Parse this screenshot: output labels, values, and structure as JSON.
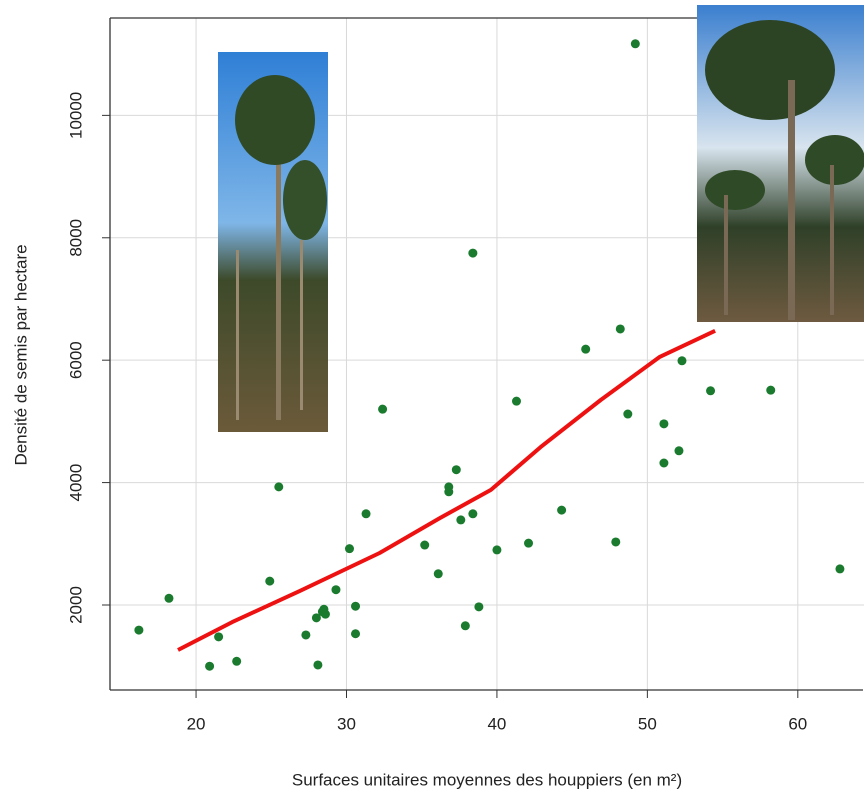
{
  "chart_data": {
    "type": "scatter",
    "xlabel": "Surfaces unitaires moyennes des houppiers (en m²)",
    "ylabel": "Densité de semis par hectare",
    "xlim": [
      14.28,
      64.4
    ],
    "ylim": [
      611,
      11591
    ],
    "xticks": [
      20,
      30,
      40,
      50,
      60
    ],
    "yticks": [
      2000,
      4000,
      6000,
      8000,
      10000
    ],
    "grid": true,
    "points": {
      "color": "#1a7a2e",
      "x": [
        16.2,
        18.2,
        20.9,
        21.5,
        22.7,
        24.9,
        25.5,
        27.3,
        28.0,
        28.1,
        28.4,
        28.5,
        28.6,
        29.3,
        30.2,
        30.6,
        30.6,
        31.3,
        32.4,
        35.2,
        36.1,
        36.8,
        36.8,
        37.3,
        37.6,
        37.9,
        38.4,
        38.4,
        38.8,
        40.0,
        41.3,
        42.1,
        44.3,
        45.9,
        47.9,
        48.2,
        48.7,
        49.2,
        51.1,
        51.1,
        52.1,
        52.3,
        54.2,
        58.2,
        62.8
      ],
      "y": [
        1590,
        2110,
        1000,
        1480,
        1080,
        2390,
        3930,
        1510,
        1790,
        1020,
        1890,
        1930,
        1850,
        2250,
        2920,
        1980,
        1530,
        3490,
        5200,
        2980,
        2510,
        3930,
        3850,
        4210,
        3390,
        1660,
        7750,
        3490,
        1970,
        2900,
        5330,
        3010,
        3550,
        6180,
        3030,
        6510,
        5120,
        11170,
        4960,
        4320,
        4520,
        5990,
        5500,
        5510,
        2590
      ]
    },
    "curve": {
      "color": "#ee1111",
      "x": [
        18.8,
        22.4,
        26.9,
        32.2,
        36.2,
        39.6,
        42.9,
        46.9,
        50.8,
        54.5
      ],
      "y": [
        1265,
        1720,
        2230,
        2850,
        3420,
        3880,
        4580,
        5350,
        6050,
        6480
      ]
    }
  }
}
